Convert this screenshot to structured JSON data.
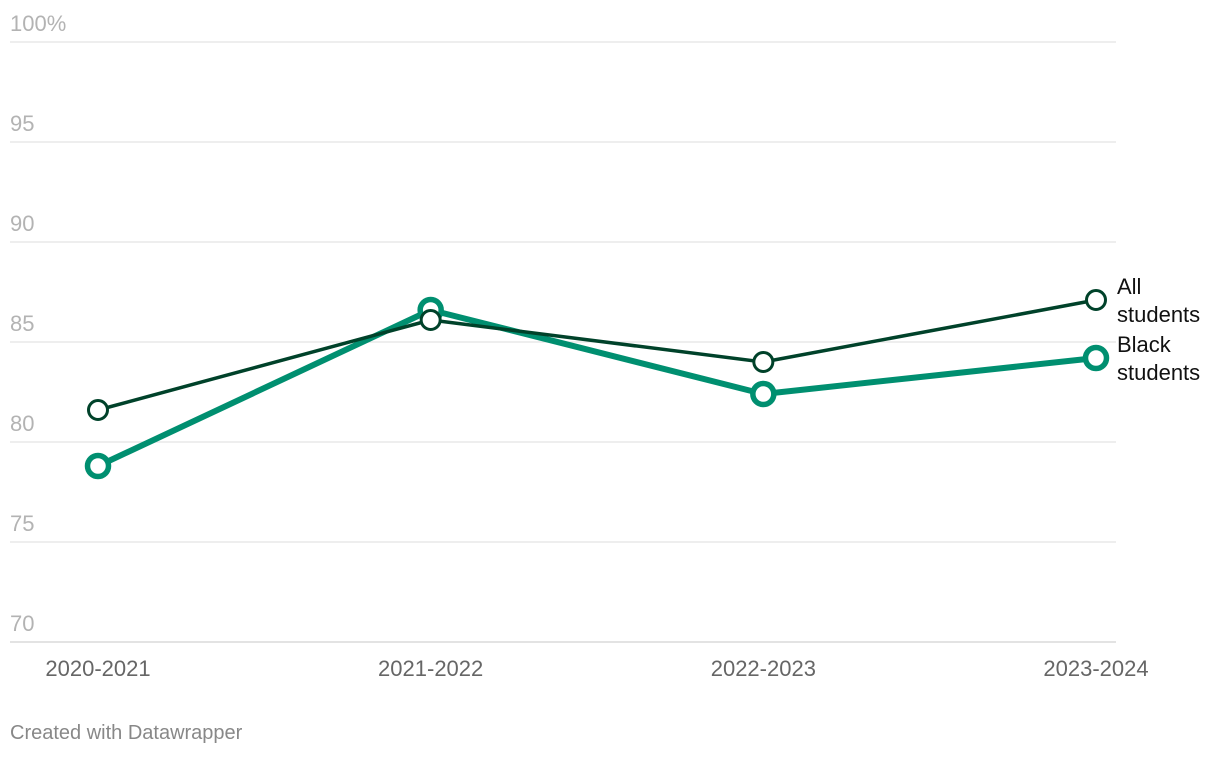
{
  "chart_data": {
    "type": "line",
    "categories": [
      "2020-2021",
      "2021-2022",
      "2022-2023",
      "2023-2024"
    ],
    "y_ticks": [
      "100%",
      "95",
      "90",
      "85",
      "80",
      "75",
      "70"
    ],
    "ylim": [
      70,
      100
    ],
    "grid": true,
    "legend": "direct labels at line ends (right)",
    "series": [
      {
        "name": "All students",
        "label_lines": [
          "All",
          "students"
        ],
        "values": [
          81.6,
          86.1,
          84.0,
          87.1
        ],
        "color": "#00422a",
        "style": "thin line, hollow circle markers"
      },
      {
        "name": "Black students",
        "label_lines": [
          "Black",
          "students"
        ],
        "values": [
          78.8,
          86.6,
          82.4,
          84.2
        ],
        "color": "#008f70",
        "style": "thick line, hollow circle markers"
      }
    ],
    "xlabel": "",
    "ylabel": ""
  },
  "footer": {
    "credit": "Created with Datawrapper"
  }
}
